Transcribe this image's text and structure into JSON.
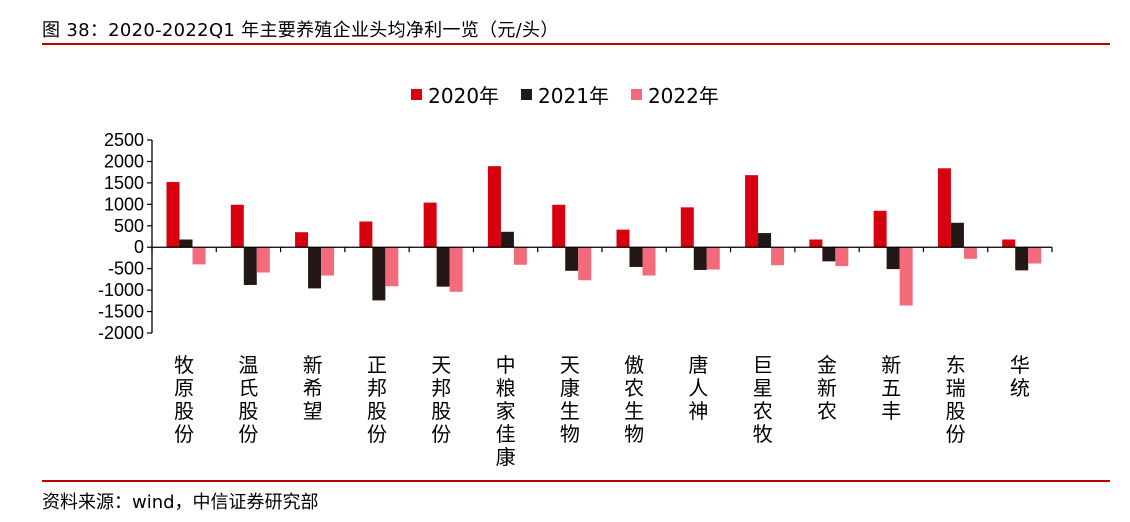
{
  "header": {
    "figure_title": "图 38：2020-2022Q1 年主要养殖企业头均净利一览（元/头）"
  },
  "footer": {
    "source": "资料来源：wind，中信证券研究部"
  },
  "colors": {
    "rule": "#c00000",
    "axis": "#000000"
  },
  "chart_data": {
    "type": "bar",
    "title": "",
    "xlabel": "",
    "ylabel": "",
    "ylim": [
      -2000,
      2500
    ],
    "yticks": [
      2500,
      2000,
      1500,
      1000,
      500,
      0,
      -500,
      -1000,
      -1500,
      -2000
    ],
    "grid": false,
    "legend_position": "top-center",
    "categories": [
      "牧原股份",
      "温氏股份",
      "新希望",
      "正邦股份",
      "天邦股份",
      "中粮家佳康",
      "天康生物",
      "傲农生物",
      "唐人神",
      "巨星农牧",
      "金新农",
      "新五丰",
      "东瑞股份",
      "华统"
    ],
    "series": [
      {
        "name": "2020年",
        "color": "#d7000f",
        "values": [
          1520,
          990,
          350,
          600,
          1040,
          1890,
          990,
          410,
          930,
          1680,
          180,
          850,
          1840,
          180
        ]
      },
      {
        "name": "2021年",
        "color": "#231815",
        "values": [
          180,
          -880,
          -960,
          -1240,
          -920,
          360,
          -550,
          -460,
          -530,
          330,
          -330,
          -510,
          570,
          -540
        ]
      },
      {
        "name": "2022年",
        "color": "#f36b7a",
        "values": [
          -400,
          -590,
          -660,
          -910,
          -1040,
          -410,
          -770,
          -660,
          -520,
          -420,
          -440,
          -1360,
          -270,
          -380
        ]
      }
    ]
  }
}
